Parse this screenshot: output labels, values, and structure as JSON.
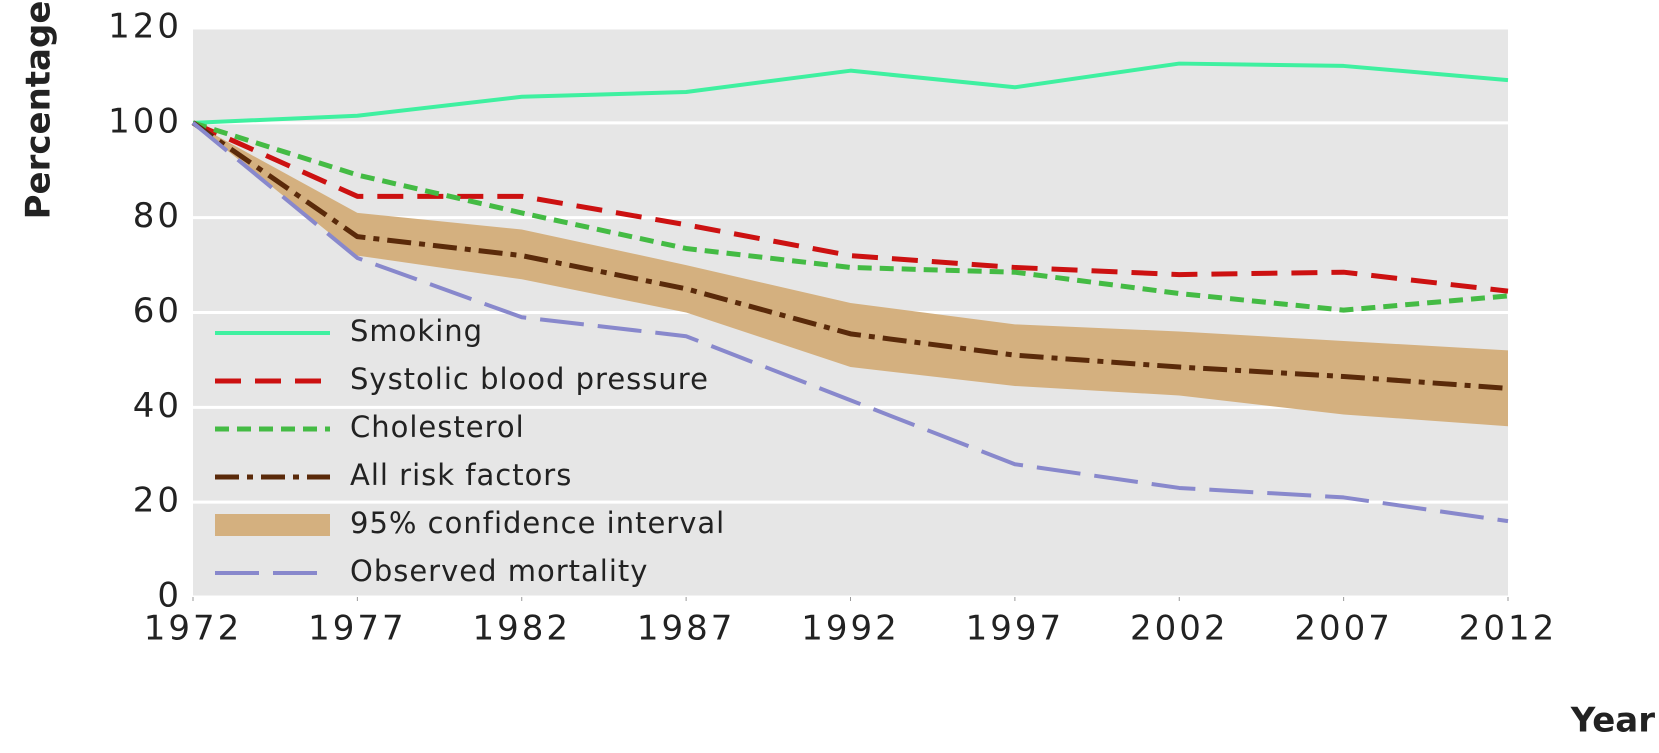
{
  "chart_data": {
    "type": "line",
    "y_label": "Percentage",
    "x_label": "Year",
    "x": [
      1972,
      1977,
      1982,
      1987,
      1992,
      1997,
      2002,
      2007,
      2012
    ],
    "xlim": [
      1972,
      2012
    ],
    "xticks": [
      1972,
      1977,
      1982,
      1987,
      1992,
      1997,
      2002,
      2007,
      2012
    ],
    "ylim": [
      0,
      120
    ],
    "yticks": [
      0,
      20,
      40,
      60,
      80,
      100,
      120
    ],
    "grid": true,
    "legend": "lower left",
    "series": [
      {
        "name": "Smoking",
        "color": "#3ff0a0",
        "style": "solid",
        "values": [
          100,
          101.5,
          105.5,
          106.5,
          111,
          107.5,
          112.5,
          112,
          109
        ]
      },
      {
        "name": "Systolic blood pressure",
        "color": "#cc1111",
        "style": "dashed",
        "values": [
          100,
          84.5,
          84.5,
          78.5,
          72,
          69.5,
          68,
          68.5,
          64.5
        ]
      },
      {
        "name": "Cholesterol",
        "color": "#44bb44",
        "style": "short-dashed",
        "values": [
          100,
          89,
          81,
          73.5,
          69.5,
          68.5,
          64,
          60.5,
          63.5
        ]
      },
      {
        "name": "All risk factors",
        "color": "#5a2a0a",
        "style": "dash-dot",
        "values": [
          100,
          76,
          72,
          65,
          55.5,
          51,
          48.5,
          46.5,
          44
        ]
      },
      {
        "name": "95% confidence interval",
        "color": "#d4b07f",
        "style": "band",
        "upper": [
          100,
          81,
          77.5,
          70,
          62,
          57.5,
          56,
          54,
          52
        ],
        "lower": [
          100,
          72,
          67,
          60,
          48.5,
          44.5,
          42.5,
          38.5,
          36
        ]
      },
      {
        "name": "Observed mortality",
        "color": "#8888cc",
        "style": "long-dashed",
        "values": [
          100,
          71.5,
          59,
          55,
          41.5,
          28,
          23,
          21,
          16
        ]
      }
    ]
  }
}
